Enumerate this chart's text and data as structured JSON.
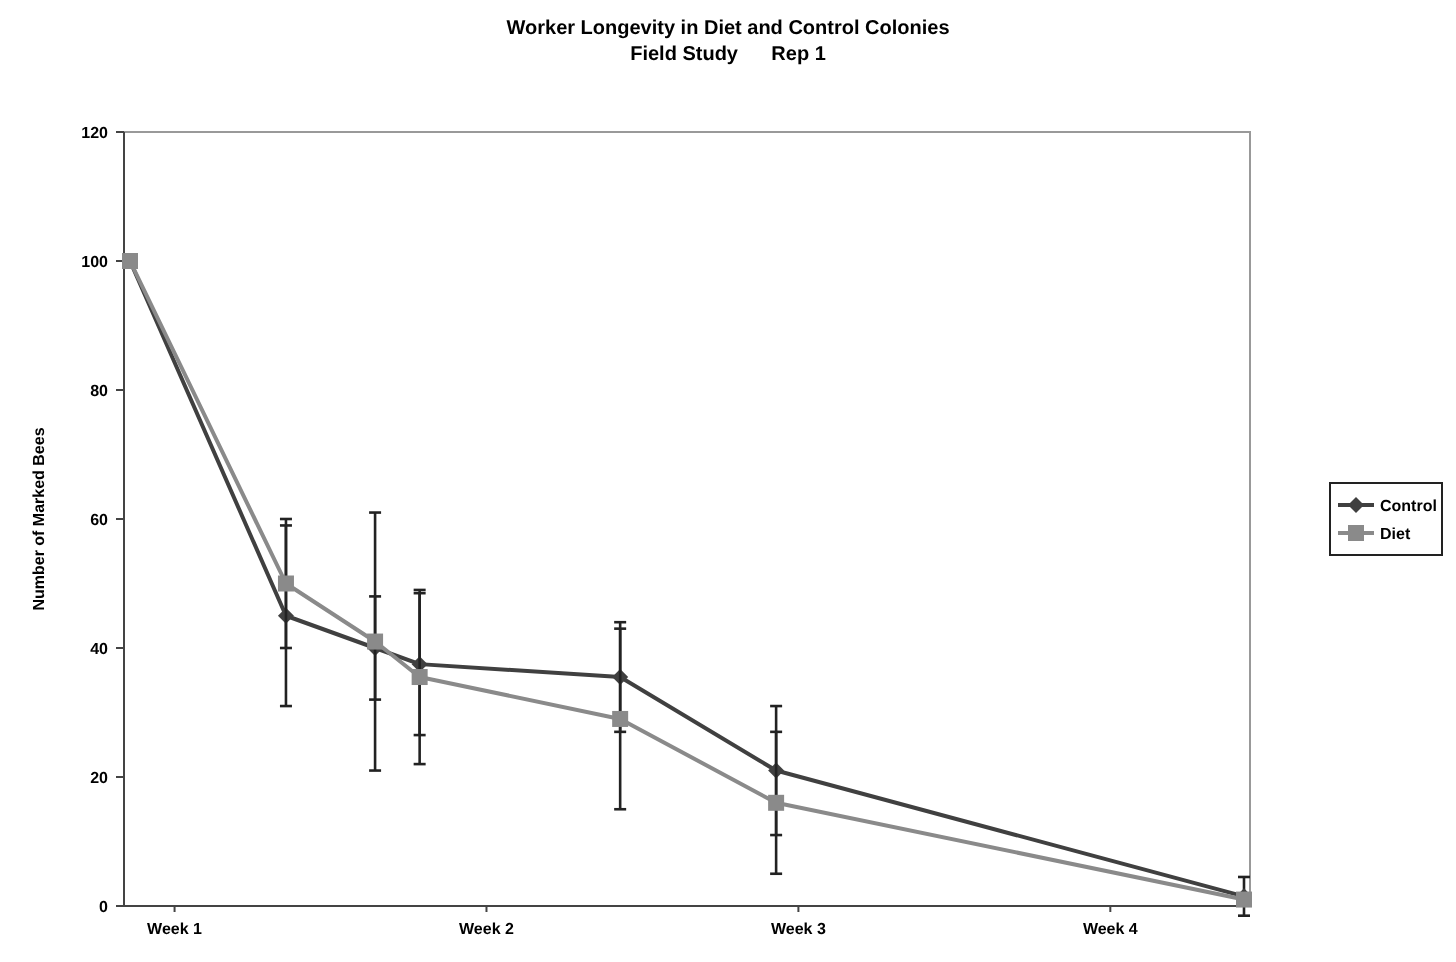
{
  "chart_data": {
    "type": "line",
    "title": "Worker Longevity in Diet and Control Colonies",
    "subtitle": "Field Study      Rep 1",
    "ylabel": "Number of Marked Bees",
    "categories": [
      null,
      null,
      "Week 1",
      null,
      null,
      null,
      null,
      null,
      null,
      null,
      null,
      null,
      null,
      null,
      null,
      null,
      "Week 2",
      null,
      null,
      null,
      null,
      null,
      null,
      null,
      null,
      null,
      null,
      null,
      null,
      null,
      "Week 3",
      null,
      null,
      null,
      null,
      null,
      null,
      null,
      null,
      null,
      null,
      null,
      null,
      null,
      "Week 4",
      null,
      null,
      null,
      null,
      null,
      null
    ],
    "ylim": [
      0,
      120
    ],
    "yticks": [
      0,
      20,
      40,
      60,
      80,
      100,
      120
    ],
    "series": [
      {
        "name": "Control",
        "color": "#404040",
        "marker": "diamond",
        "values": [
          100,
          null,
          null,
          null,
          null,
          null,
          null,
          45,
          null,
          null,
          null,
          40,
          null,
          37.5,
          null,
          null,
          null,
          null,
          null,
          null,
          null,
          null,
          35.5,
          null,
          null,
          null,
          null,
          null,
          null,
          21,
          null,
          null,
          null,
          null,
          null,
          null,
          null,
          null,
          null,
          null,
          null,
          null,
          null,
          null,
          null,
          null,
          null,
          null,
          null,
          null,
          1.5
        ],
        "errors": [
          null,
          null,
          null,
          null,
          null,
          null,
          null,
          14,
          null,
          null,
          null,
          8,
          null,
          11,
          null,
          null,
          null,
          null,
          null,
          null,
          null,
          null,
          8.5,
          null,
          null,
          null,
          null,
          null,
          null,
          10,
          null,
          null,
          null,
          null,
          null,
          null,
          null,
          null,
          null,
          null,
          null,
          null,
          null,
          null,
          null,
          null,
          null,
          null,
          null,
          null,
          3
        ]
      },
      {
        "name": "Diet",
        "color": "#8a8a8a",
        "marker": "square",
        "values": [
          100,
          null,
          null,
          null,
          null,
          null,
          null,
          50,
          null,
          null,
          null,
          41,
          null,
          35.5,
          null,
          null,
          null,
          null,
          null,
          null,
          null,
          null,
          29,
          null,
          null,
          null,
          null,
          null,
          null,
          16,
          null,
          null,
          null,
          null,
          null,
          null,
          null,
          null,
          null,
          null,
          null,
          null,
          null,
          null,
          null,
          null,
          null,
          null,
          null,
          null,
          1
        ],
        "errors": [
          null,
          null,
          null,
          null,
          null,
          null,
          null,
          10,
          null,
          null,
          null,
          20,
          null,
          13.5,
          null,
          null,
          null,
          null,
          null,
          null,
          null,
          null,
          14,
          null,
          null,
          null,
          null,
          null,
          null,
          11,
          null,
          null,
          null,
          null,
          null,
          null,
          null,
          null,
          null,
          null,
          null,
          null,
          null,
          null,
          null,
          null,
          null,
          null,
          null,
          null,
          null
        ]
      }
    ],
    "legend": "right",
    "grid": false,
    "line_style": "solid"
  }
}
